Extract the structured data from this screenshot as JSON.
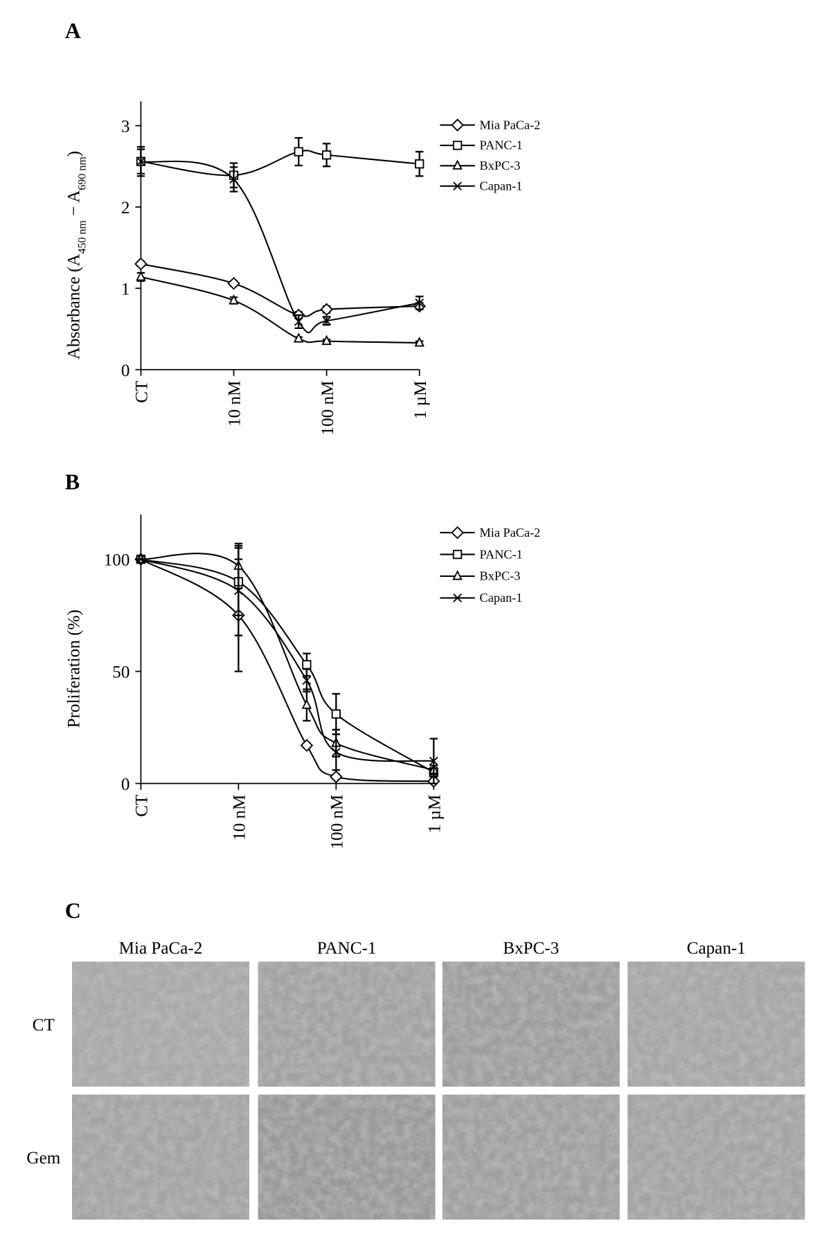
{
  "chart_data": [
    {
      "type": "line",
      "panel": "A",
      "ylabel": [
        {
          "text": "Absorbance (A",
          "sub": false
        },
        {
          "text": "450 nm",
          "sub": true
        },
        {
          "text": " − A",
          "sub": false
        },
        {
          "text": "690 nm",
          "sub": true
        },
        {
          "text": ")",
          "sub": false
        }
      ],
      "x": [
        1,
        10,
        50,
        100,
        1000
      ],
      "xscale": "log",
      "xlim": [
        1,
        1000
      ],
      "xticks": [
        {
          "value": 1,
          "label": "CT"
        },
        {
          "value": 10,
          "label": "10 nM"
        },
        {
          "value": 100,
          "label": "100 nM"
        },
        {
          "value": 1000,
          "label": "1 µM"
        }
      ],
      "ylim": [
        0,
        3.3
      ],
      "yticks": [
        0,
        1,
        2,
        3
      ],
      "legend": "right",
      "series": [
        {
          "name": "Mia PaCa-2",
          "color": "#000000",
          "marker": "diamond",
          "values": [
            1.3,
            1.06,
            0.67,
            0.74,
            0.78
          ],
          "errors": [
            0.03,
            0.03,
            0.04,
            0.04,
            0.04
          ]
        },
        {
          "name": "PANC-1",
          "color": "#000000",
          "marker": "square",
          "values": [
            2.56,
            2.39,
            2.68,
            2.64,
            2.53
          ],
          "errors": [
            0.18,
            0.15,
            0.17,
            0.14,
            0.15
          ]
        },
        {
          "name": "BxPC-3",
          "color": "#000000",
          "marker": "triangle",
          "values": [
            1.14,
            0.85,
            0.38,
            0.35,
            0.33
          ],
          "errors": [
            0.05,
            0.04,
            0.02,
            0.02,
            0.02
          ]
        },
        {
          "name": "Capan-1",
          "color": "#000000",
          "marker": "x",
          "values": [
            2.56,
            2.34,
            0.59,
            0.6,
            0.82
          ],
          "errors": [
            0.15,
            0.15,
            0.08,
            0.05,
            0.08
          ]
        }
      ]
    },
    {
      "type": "line",
      "panel": "B",
      "ylabel": [
        {
          "text": "Proliferation (%)",
          "sub": false
        }
      ],
      "x": [
        1,
        10,
        50,
        100,
        1000
      ],
      "xscale": "log",
      "xlim": [
        1,
        1000
      ],
      "xticks": [
        {
          "value": 1,
          "label": "CT"
        },
        {
          "value": 10,
          "label": "10 nM"
        },
        {
          "value": 100,
          "label": "100 nM"
        },
        {
          "value": 1000,
          "label": "1 µM"
        }
      ],
      "ylim": [
        0,
        120
      ],
      "yticks": [
        0,
        50,
        100
      ],
      "legend": "right",
      "series": [
        {
          "name": "Mia PaCa-2",
          "color": "#000000",
          "marker": "diamond",
          "values": [
            100,
            75,
            17,
            3,
            1
          ],
          "errors": [
            0,
            25,
            1,
            1,
            0.5
          ]
        },
        {
          "name": "PANC-1",
          "color": "#000000",
          "marker": "square",
          "values": [
            100,
            90,
            53,
            31,
            5
          ],
          "errors": [
            0,
            15,
            5,
            9,
            2
          ]
        },
        {
          "name": "BxPC-3",
          "color": "#000000",
          "marker": "triangle",
          "values": [
            100,
            97,
            35,
            18,
            6
          ],
          "errors": [
            0,
            10,
            7,
            6,
            2
          ]
        },
        {
          "name": "Capan-1",
          "color": "#000000",
          "marker": "x",
          "values": [
            100,
            86,
            46,
            14,
            10
          ],
          "errors": [
            0,
            20,
            5,
            8,
            10
          ]
        }
      ]
    }
  ],
  "micrographs": {
    "panel": "C",
    "columns": [
      "Mia PaCa-2",
      "PANC-1",
      "BxPC-3",
      "Capan-1"
    ],
    "rows": [
      "CT",
      "Gem"
    ]
  }
}
